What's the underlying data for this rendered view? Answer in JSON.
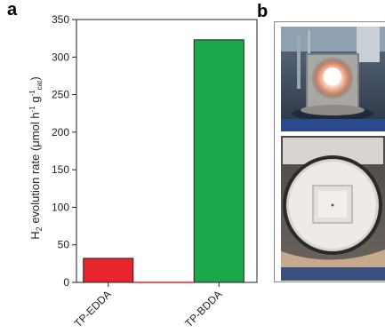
{
  "panel_labels": {
    "a": "a",
    "b": "b"
  },
  "chart_data": {
    "type": "bar",
    "categories": [
      "TP-EDDA",
      "TP-BDDA"
    ],
    "values": [
      32,
      323
    ],
    "colors": [
      "#e8242c",
      "#1aa84a"
    ],
    "ylabel": "H2 evolution rate (μmol h⁻¹ g⁻¹cat)",
    "ylabel_parts": {
      "main": "H",
      "sub2": "2",
      "rest": " evolution rate (μmol h",
      "sup1": "-1",
      "g": " g",
      "sup2": "-1",
      "subcat": "cat",
      "close": ")"
    },
    "ylim": [
      0,
      350
    ],
    "yticks": [
      0,
      50,
      100,
      150,
      200,
      250,
      300,
      350
    ],
    "grid": false,
    "legend": "none"
  },
  "images": [
    {
      "name": "photo-reactor-illuminated",
      "description": ""
    },
    {
      "name": "photo-reactor-open",
      "description": ""
    }
  ]
}
